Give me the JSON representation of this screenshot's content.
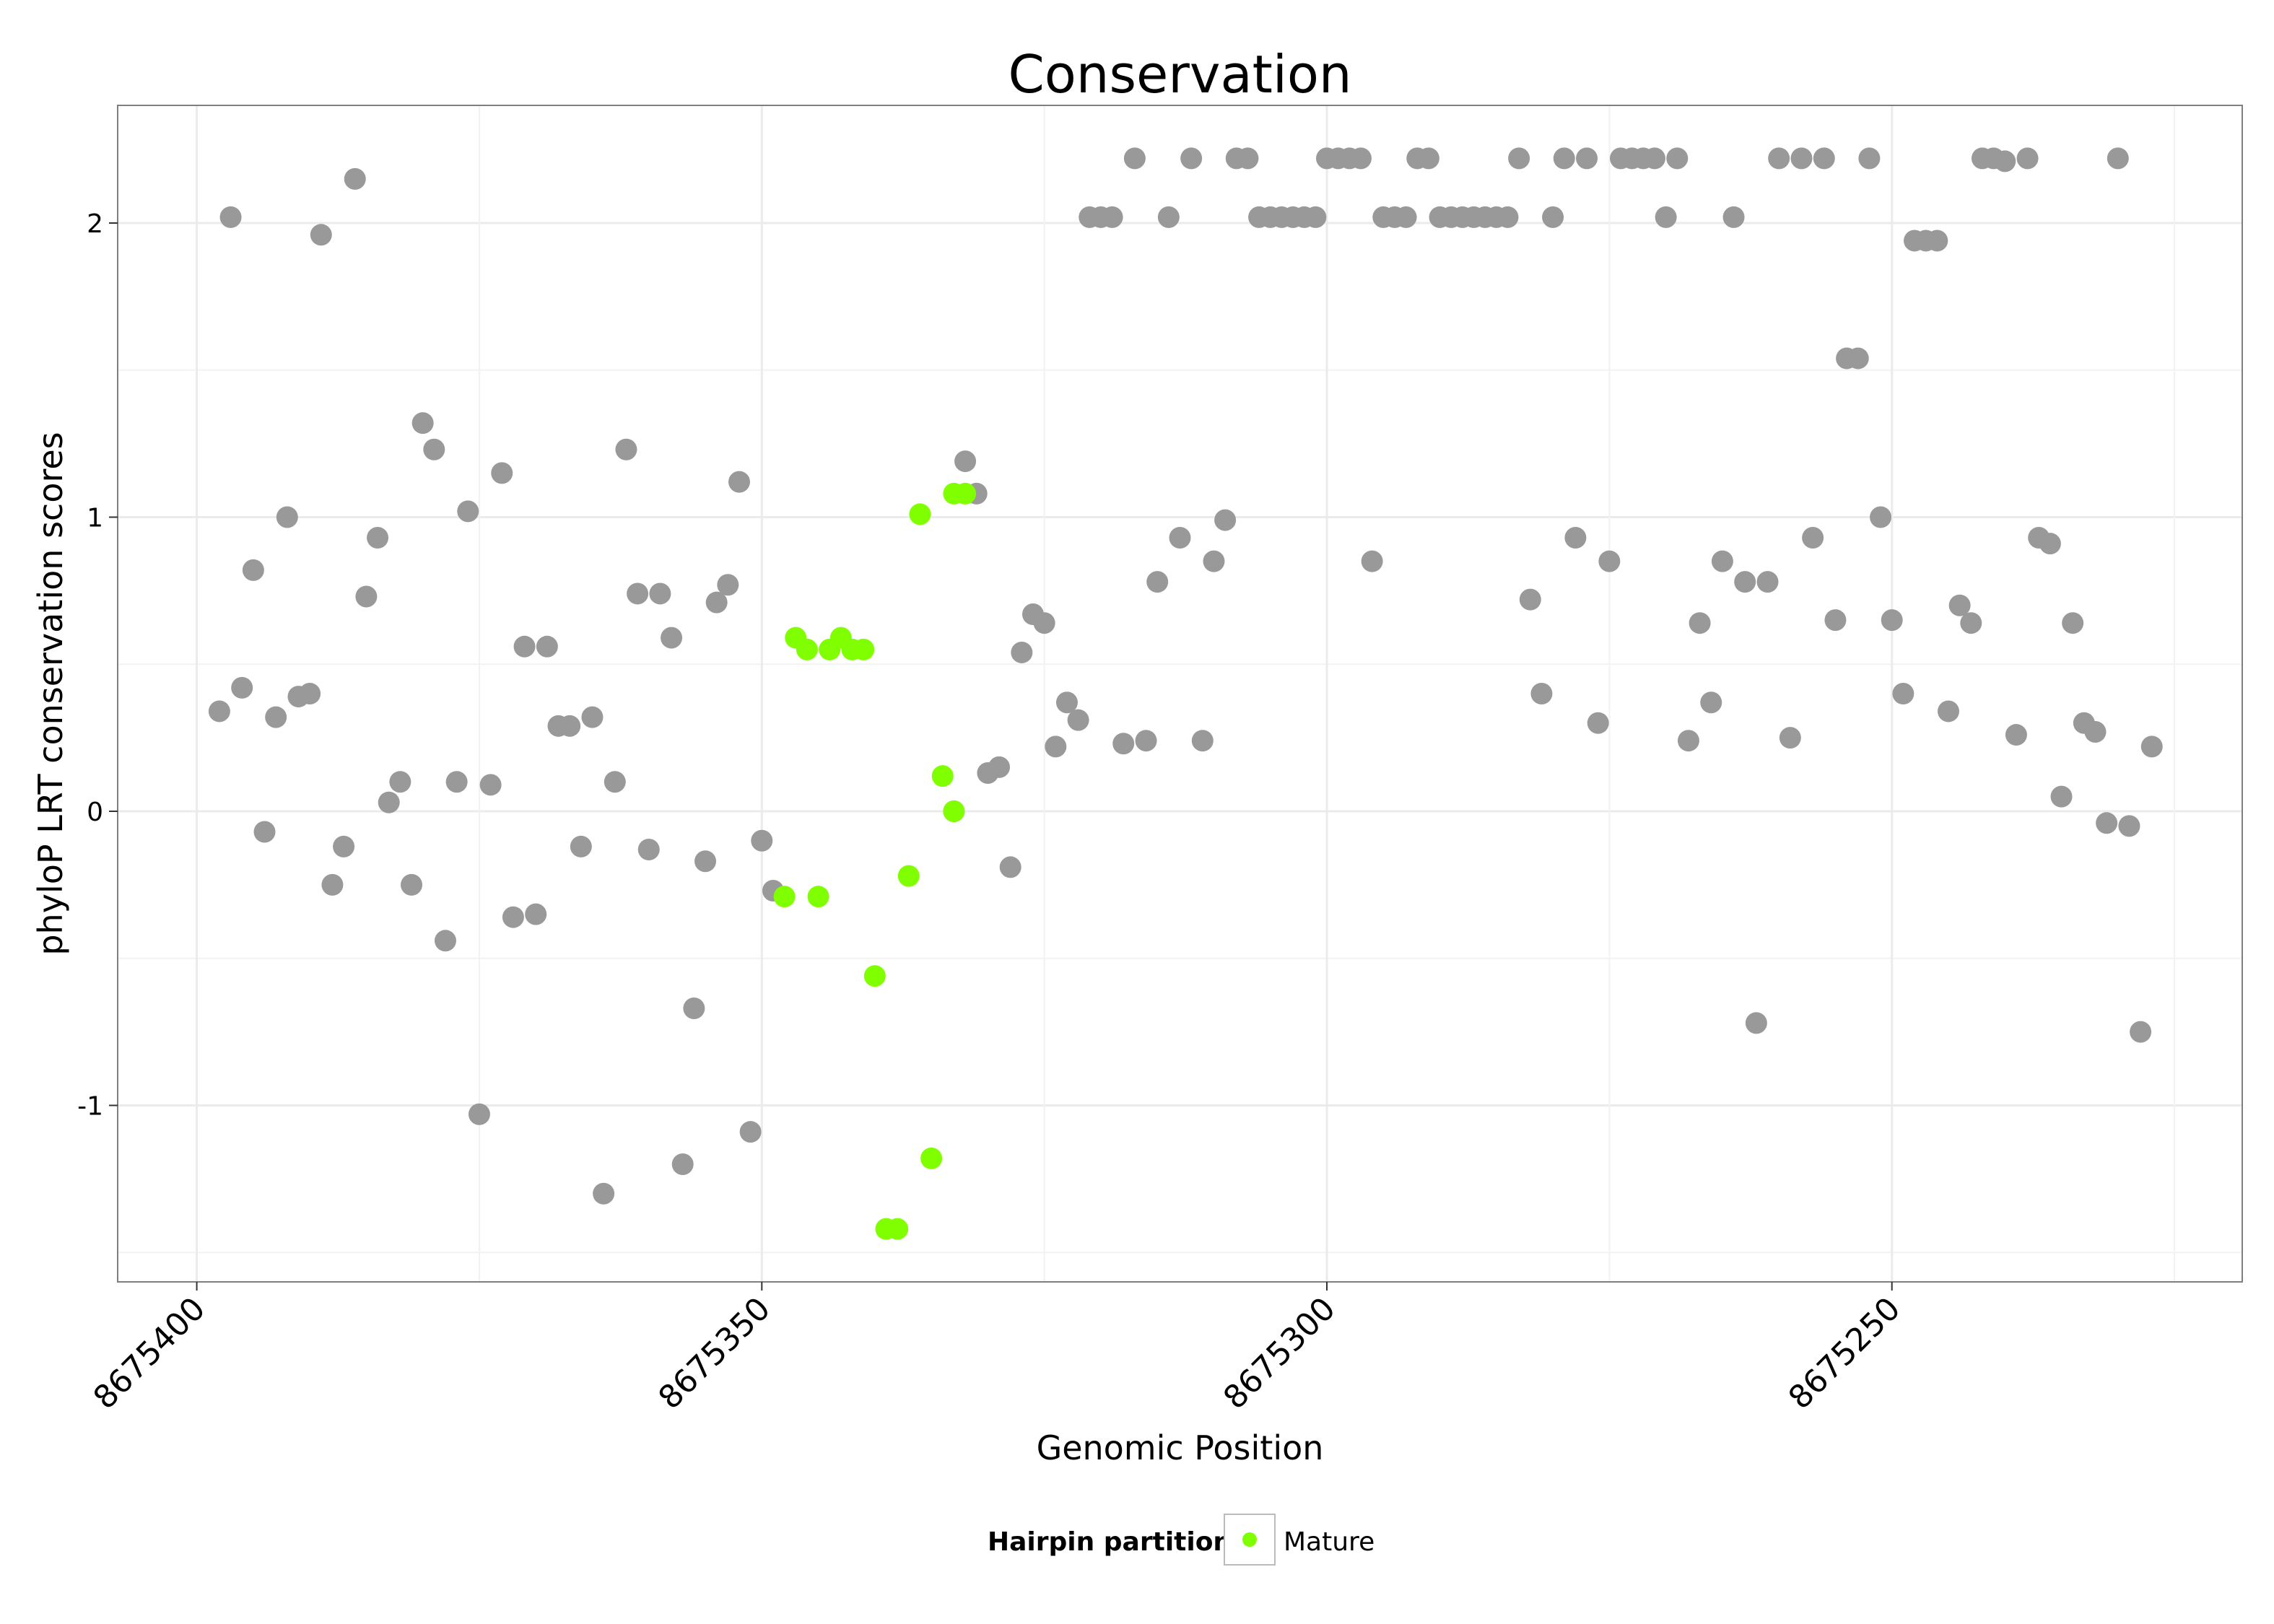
{
  "chart_data": {
    "type": "scatter",
    "title": "Conservation",
    "xlabel": "Genomic Position",
    "ylabel": "phyloP LRT conservation scores",
    "x_reversed": true,
    "xlim": [
      8675407,
      8675219
    ],
    "ylim": [
      -1.6,
      2.4
    ],
    "x_ticks": [
      8675400,
      8675350,
      8675300,
      8675250
    ],
    "x_tick_labels": [
      "8675400",
      "8675350",
      "8675300",
      "8675250"
    ],
    "y_ticks": [
      -1,
      0,
      1,
      2
    ],
    "y_tick_labels": [
      "-1",
      "0",
      "1",
      "2"
    ],
    "grid": true,
    "legend": {
      "title": "Hairpin partition",
      "position": "bottom",
      "entries": [
        {
          "label": "Mature",
          "color": "#7fff00"
        }
      ]
    },
    "colors": {
      "other": "#999999",
      "mature": "#7fff00"
    },
    "series": [
      {
        "name": "",
        "color": "#999999",
        "points": [
          [
            8675398,
            0.34
          ],
          [
            8675397,
            2.02
          ],
          [
            8675396,
            0.42
          ],
          [
            8675395,
            0.82
          ],
          [
            8675394,
            -0.07
          ],
          [
            8675393,
            0.32
          ],
          [
            8675392,
            1.0
          ],
          [
            8675391,
            0.39
          ],
          [
            8675390,
            0.4
          ],
          [
            8675389,
            1.96
          ],
          [
            8675388,
            -0.25
          ],
          [
            8675387,
            -0.12
          ],
          [
            8675386,
            2.15
          ],
          [
            8675385,
            0.73
          ],
          [
            8675384,
            0.93
          ],
          [
            8675383,
            0.03
          ],
          [
            8675382,
            0.1
          ],
          [
            8675381,
            -0.25
          ],
          [
            8675380,
            1.32
          ],
          [
            8675379,
            1.23
          ],
          [
            8675378,
            -0.44
          ],
          [
            8675377,
            0.1
          ],
          [
            8675376,
            1.02
          ],
          [
            8675375,
            -1.03
          ],
          [
            8675374,
            0.09
          ],
          [
            8675373,
            1.15
          ],
          [
            8675372,
            -0.36
          ],
          [
            8675371,
            0.56
          ],
          [
            8675370,
            -0.35
          ],
          [
            8675369,
            0.56
          ],
          [
            8675368,
            0.29
          ],
          [
            8675367,
            0.29
          ],
          [
            8675366,
            -0.12
          ],
          [
            8675365,
            0.32
          ],
          [
            8675364,
            -1.3
          ],
          [
            8675363,
            0.1
          ],
          [
            8675362,
            1.23
          ],
          [
            8675361,
            0.74
          ],
          [
            8675360,
            -0.13
          ],
          [
            8675359,
            0.74
          ],
          [
            8675358,
            0.59
          ],
          [
            8675357,
            -1.2
          ],
          [
            8675356,
            -0.67
          ],
          [
            8675355,
            -0.17
          ],
          [
            8675354,
            0.71
          ],
          [
            8675353,
            0.77
          ],
          [
            8675352,
            1.12
          ],
          [
            8675351,
            -1.09
          ],
          [
            8675350,
            -0.1
          ],
          [
            8675349,
            -0.27
          ],
          [
            8675333,
            0.0
          ],
          [
            8675332,
            1.19
          ],
          [
            8675331,
            1.08
          ],
          [
            8675330,
            0.13
          ],
          [
            8675329,
            0.15
          ],
          [
            8675328,
            -0.19
          ],
          [
            8675327,
            0.54
          ],
          [
            8675326,
            0.67
          ],
          [
            8675325,
            0.64
          ],
          [
            8675324,
            0.22
          ],
          [
            8675323,
            0.37
          ],
          [
            8675322,
            0.31
          ],
          [
            8675321,
            2.02
          ],
          [
            8675320,
            2.02
          ],
          [
            8675319,
            2.02
          ],
          [
            8675318,
            0.23
          ],
          [
            8675317,
            2.22
          ],
          [
            8675316,
            0.24
          ],
          [
            8675315,
            0.78
          ],
          [
            8675314,
            2.02
          ],
          [
            8675313,
            0.93
          ],
          [
            8675312,
            2.22
          ],
          [
            8675311,
            0.24
          ],
          [
            8675310,
            0.85
          ],
          [
            8675309,
            0.99
          ],
          [
            8675308,
            2.22
          ],
          [
            8675307,
            2.22
          ],
          [
            8675306,
            2.02
          ],
          [
            8675305,
            2.02
          ],
          [
            8675304,
            2.02
          ],
          [
            8675303,
            2.02
          ],
          [
            8675302,
            2.02
          ],
          [
            8675301,
            2.02
          ],
          [
            8675300,
            2.22
          ],
          [
            8675299,
            2.22
          ],
          [
            8675298,
            2.22
          ],
          [
            8675297,
            2.22
          ],
          [
            8675296,
            0.85
          ],
          [
            8675295,
            2.02
          ],
          [
            8675294,
            2.02
          ],
          [
            8675293,
            2.02
          ],
          [
            8675292,
            2.22
          ],
          [
            8675291,
            2.22
          ],
          [
            8675290,
            2.02
          ],
          [
            8675289,
            2.02
          ],
          [
            8675288,
            2.02
          ],
          [
            8675287,
            2.02
          ],
          [
            8675286,
            2.02
          ],
          [
            8675285,
            2.02
          ],
          [
            8675284,
            2.02
          ],
          [
            8675283,
            2.22
          ],
          [
            8675282,
            0.72
          ],
          [
            8675281,
            0.4
          ],
          [
            8675280,
            2.02
          ],
          [
            8675279,
            2.22
          ],
          [
            8675278,
            0.93
          ],
          [
            8675277,
            2.22
          ],
          [
            8675276,
            0.3
          ],
          [
            8675275,
            0.85
          ],
          [
            8675274,
            2.22
          ],
          [
            8675273,
            2.22
          ],
          [
            8675272,
            2.22
          ],
          [
            8675271,
            2.22
          ],
          [
            8675270,
            2.02
          ],
          [
            8675269,
            2.22
          ],
          [
            8675268,
            0.24
          ],
          [
            8675267,
            0.64
          ],
          [
            8675266,
            0.37
          ],
          [
            8675265,
            0.85
          ],
          [
            8675264,
            2.02
          ],
          [
            8675263,
            0.78
          ],
          [
            8675262,
            -0.72
          ],
          [
            8675261,
            0.78
          ],
          [
            8675260,
            2.22
          ],
          [
            8675259,
            0.25
          ],
          [
            8675258,
            2.22
          ],
          [
            8675257,
            0.93
          ],
          [
            8675256,
            2.22
          ],
          [
            8675255,
            0.65
          ],
          [
            8675254,
            1.54
          ],
          [
            8675253,
            1.54
          ],
          [
            8675252,
            2.22
          ],
          [
            8675251,
            1.0
          ],
          [
            8675250,
            0.65
          ],
          [
            8675249,
            0.4
          ],
          [
            8675248,
            1.94
          ],
          [
            8675247,
            1.94
          ],
          [
            8675246,
            1.94
          ],
          [
            8675245,
            0.34
          ],
          [
            8675244,
            0.7
          ],
          [
            8675243,
            0.64
          ],
          [
            8675242,
            2.22
          ],
          [
            8675241,
            2.22
          ],
          [
            8675240,
            2.21
          ],
          [
            8675239,
            0.26
          ],
          [
            8675238,
            2.22
          ],
          [
            8675237,
            0.93
          ],
          [
            8675236,
            0.91
          ],
          [
            8675235,
            0.05
          ],
          [
            8675234,
            0.64
          ],
          [
            8675233,
            0.3
          ],
          [
            8675232,
            0.27
          ],
          [
            8675231,
            -0.04
          ],
          [
            8675230,
            2.22
          ],
          [
            8675229,
            -0.05
          ],
          [
            8675228,
            -0.75
          ],
          [
            8675227,
            0.22
          ]
        ]
      },
      {
        "name": "Mature",
        "color": "#7fff00",
        "points": [
          [
            8675348,
            -0.29
          ],
          [
            8675347,
            0.59
          ],
          [
            8675346,
            0.55
          ],
          [
            8675345,
            -0.29
          ],
          [
            8675344,
            0.55
          ],
          [
            8675343,
            0.59
          ],
          [
            8675342,
            0.55
          ],
          [
            8675341,
            0.55
          ],
          [
            8675340,
            -0.56
          ],
          [
            8675339,
            -1.42
          ],
          [
            8675338,
            -1.42
          ],
          [
            8675337,
            -0.22
          ],
          [
            8675336,
            1.01
          ],
          [
            8675335,
            -1.18
          ],
          [
            8675334,
            0.12
          ],
          [
            8675333,
            0.0
          ],
          [
            8675333,
            1.08
          ],
          [
            8675332,
            1.08
          ]
        ]
      }
    ]
  }
}
